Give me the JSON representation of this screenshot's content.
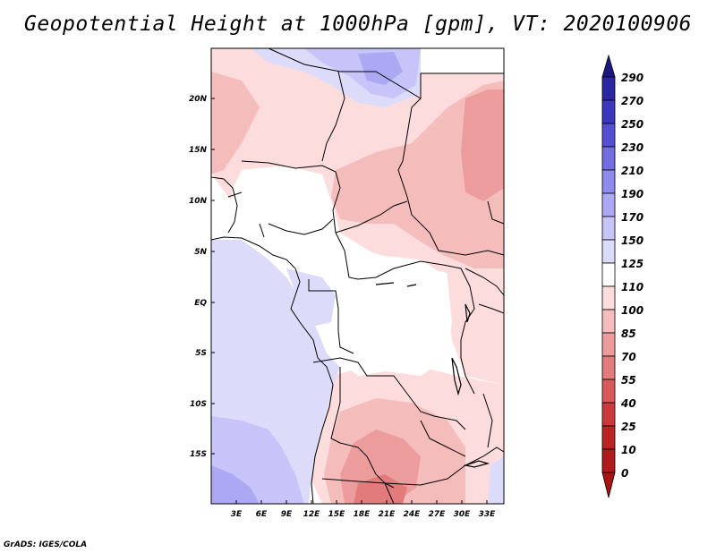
{
  "title": "Geopotential Height at 1000hPa [gpm], VT: 2020100906",
  "footer": "GrADS: IGES/COLA",
  "map": {
    "region": "Central and Southern Africa",
    "lon_range": [
      0,
      36
    ],
    "lat_range": [
      -20,
      25
    ],
    "x_ticks": [
      "3E",
      "6E",
      "9E",
      "12E",
      "15E",
      "18E",
      "21E",
      "24E",
      "27E",
      "30E",
      "33E"
    ],
    "y_ticks": [
      "20N",
      "15N",
      "10N",
      "5N",
      "EQ",
      "5S",
      "10S",
      "15S"
    ]
  },
  "colorbar": {
    "labels": [
      "290",
      "270",
      "250",
      "230",
      "210",
      "190",
      "170",
      "150",
      "125",
      "110",
      "100",
      "85",
      "70",
      "55",
      "40",
      "25",
      "10",
      "0"
    ],
    "colors": [
      "#1c1880",
      "#2a26a4",
      "#3b37bf",
      "#5550d2",
      "#726ee2",
      "#8f8bec",
      "#aca8f3",
      "#c6c4f8",
      "#dcdcfa",
      "#ffffff",
      "#fcdcdc",
      "#f5bcbc",
      "#ec9c9c",
      "#e27c7c",
      "#d85a5a",
      "#cb3a3a",
      "#bc2424",
      "#a81414"
    ]
  },
  "colors": {
    "neutral": "#ffffff",
    "light_blue": "#dcdcfa",
    "mid_blue": "#c6c4f8",
    "deep_blue": "#aca8f3",
    "light_red": "#fcdcdc",
    "mid_red": "#f5bcbc",
    "deep_red": "#ec9c9c",
    "darker_red": "#e27c7c",
    "border": "#000000"
  }
}
